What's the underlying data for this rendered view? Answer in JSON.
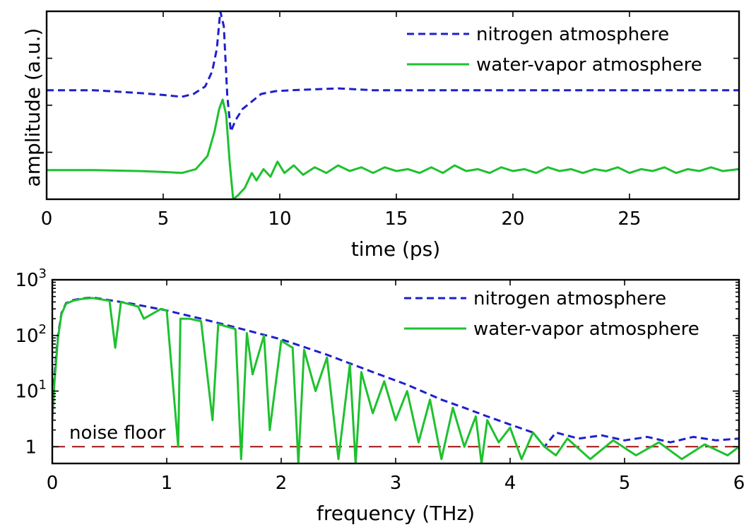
{
  "colors": {
    "nitrogen": "#1f1fcc",
    "water_vapor": "#1ec12e",
    "noise_floor": "#a01010",
    "axes": "#000000",
    "background": "#ffffff"
  },
  "chart_data": [
    {
      "type": "line",
      "xlabel": "time (ps)",
      "ylabel": "amplitude (a.u.)",
      "xlim": [
        0,
        29.7
      ],
      "ylim": [
        0,
        1
      ],
      "x_ticks": [
        0,
        5,
        10,
        15,
        20,
        25
      ],
      "x_tick_labels": [
        "0",
        "5",
        "10",
        "15",
        "20",
        "25"
      ],
      "y_tick_labels_shown": false,
      "legend_position": "top-right",
      "series": [
        {
          "name": "nitrogen atmosphere",
          "style": "dashed",
          "color": "#1f1fcc",
          "x": [
            0,
            2,
            4,
            5,
            5.8,
            6.3,
            6.8,
            7.1,
            7.3,
            7.45,
            7.6,
            7.75,
            7.9,
            8.1,
            8.4,
            8.8,
            9.2,
            9.8,
            10.5,
            12.5,
            14,
            17,
            20,
            25,
            29.7
          ],
          "y": [
            0.58,
            0.58,
            0.565,
            0.555,
            0.545,
            0.56,
            0.6,
            0.68,
            0.8,
            1.0,
            0.92,
            0.55,
            0.36,
            0.42,
            0.48,
            0.52,
            0.56,
            0.575,
            0.58,
            0.59,
            0.58,
            0.58,
            0.58,
            0.58,
            0.58
          ]
        },
        {
          "name": "water-vapor atmosphere",
          "style": "solid",
          "color": "#1ec12e",
          "x": [
            0,
            2,
            4,
            5,
            5.8,
            6.4,
            6.9,
            7.2,
            7.4,
            7.55,
            7.7,
            7.85,
            8.0,
            8.2,
            8.5,
            8.8,
            9.0,
            9.3,
            9.6,
            9.9,
            10.2,
            10.6,
            11.0,
            11.5,
            12.0,
            12.5,
            13.0,
            13.5,
            14.0,
            14.5,
            15.0,
            15.5,
            16.0,
            16.5,
            17.0,
            17.5,
            18.0,
            18.5,
            19.0,
            19.5,
            20.0,
            20.5,
            21.0,
            21.5,
            22.0,
            22.5,
            23.0,
            23.5,
            24.0,
            24.5,
            25.0,
            25.5,
            26.0,
            26.5,
            27.0,
            27.5,
            28.0,
            28.5,
            29.0,
            29.7
          ],
          "y": [
            0.155,
            0.155,
            0.15,
            0.145,
            0.14,
            0.16,
            0.23,
            0.36,
            0.48,
            0.53,
            0.45,
            0.2,
            0.0,
            0.02,
            0.06,
            0.14,
            0.1,
            0.16,
            0.12,
            0.2,
            0.14,
            0.18,
            0.13,
            0.17,
            0.14,
            0.18,
            0.15,
            0.17,
            0.14,
            0.17,
            0.15,
            0.16,
            0.14,
            0.17,
            0.14,
            0.18,
            0.15,
            0.16,
            0.14,
            0.17,
            0.15,
            0.16,
            0.14,
            0.17,
            0.15,
            0.16,
            0.14,
            0.16,
            0.15,
            0.17,
            0.14,
            0.16,
            0.15,
            0.17,
            0.14,
            0.16,
            0.15,
            0.17,
            0.15,
            0.16
          ]
        }
      ]
    },
    {
      "type": "line",
      "xlabel": "frequency (THz)",
      "ylabel": "",
      "yscale": "log",
      "xlim": [
        0,
        6
      ],
      "ylim": [
        0.5,
        1000
      ],
      "x_ticks": [
        0,
        1,
        2,
        3,
        4,
        5,
        6
      ],
      "x_tick_labels": [
        "0",
        "1",
        "2",
        "3",
        "4",
        "5",
        "6"
      ],
      "y_ticks": [
        1,
        10,
        100,
        1000
      ],
      "y_tick_labels": [
        {
          "base": "1",
          "exp": ""
        },
        {
          "base": "10",
          "exp": "1"
        },
        {
          "base": "10",
          "exp": "2"
        },
        {
          "base": "10",
          "exp": "3"
        }
      ],
      "legend_position": "top-right",
      "annotations": [
        {
          "text": "noise floor",
          "x": 0.15,
          "y": 1.7
        }
      ],
      "series": [
        {
          "name": "nitrogen atmosphere",
          "style": "dashed",
          "color": "#1f1fcc",
          "x": [
            0.0,
            0.02,
            0.05,
            0.08,
            0.12,
            0.18,
            0.25,
            0.35,
            0.5,
            0.7,
            1.0,
            1.3,
            1.6,
            2.0,
            2.4,
            2.8,
            3.1,
            3.4,
            3.6,
            3.8,
            4.0,
            4.2,
            4.3,
            4.4,
            4.6,
            4.8,
            5.0,
            5.2,
            5.4,
            5.6,
            5.8,
            6.0
          ],
          "y": [
            5,
            20,
            100,
            250,
            380,
            430,
            460,
            480,
            430,
            370,
            280,
            200,
            140,
            85,
            45,
            22,
            13,
            7,
            5,
            3.5,
            2.5,
            1.8,
            1.0,
            1.8,
            1.4,
            1.6,
            1.3,
            1.5,
            1.2,
            1.5,
            1.3,
            1.4
          ]
        },
        {
          "name": "water-vapor atmosphere",
          "style": "solid",
          "color": "#1ec12e",
          "x": [
            0.0,
            0.02,
            0.05,
            0.08,
            0.12,
            0.18,
            0.25,
            0.35,
            0.5,
            0.55,
            0.6,
            0.75,
            0.8,
            0.95,
            1.0,
            1.1,
            1.12,
            1.2,
            1.3,
            1.4,
            1.45,
            1.6,
            1.65,
            1.7,
            1.75,
            1.85,
            1.9,
            2.0,
            2.1,
            2.15,
            2.2,
            2.3,
            2.4,
            2.5,
            2.6,
            2.65,
            2.7,
            2.8,
            2.9,
            3.0,
            3.1,
            3.2,
            3.3,
            3.4,
            3.5,
            3.6,
            3.7,
            3.75,
            3.8,
            3.9,
            4.0,
            4.1,
            4.2,
            4.3,
            4.4,
            4.5,
            4.7,
            4.9,
            5.1,
            5.3,
            5.5,
            5.7,
            5.9,
            6.0
          ],
          "y": [
            3,
            15,
            90,
            240,
            370,
            420,
            450,
            470,
            420,
            60,
            400,
            330,
            200,
            300,
            280,
            1.0,
            200,
            200,
            180,
            3,
            160,
            130,
            0.6,
            110,
            20,
            100,
            2,
            80,
            60,
            0.5,
            55,
            10,
            40,
            0.6,
            30,
            0.5,
            22,
            4,
            15,
            3,
            10,
            1.2,
            7,
            0.6,
            5,
            1.0,
            3.5,
            0.5,
            3,
            1.2,
            2.2,
            0.6,
            1.8,
            1.0,
            0.7,
            1.4,
            0.6,
            1.3,
            0.7,
            1.2,
            0.6,
            1.1,
            0.7,
            1.0
          ]
        },
        {
          "name": "noise floor",
          "style": "long-dashed",
          "color": "#a01010",
          "x": [
            0,
            6
          ],
          "y": [
            1,
            1
          ]
        }
      ]
    }
  ]
}
